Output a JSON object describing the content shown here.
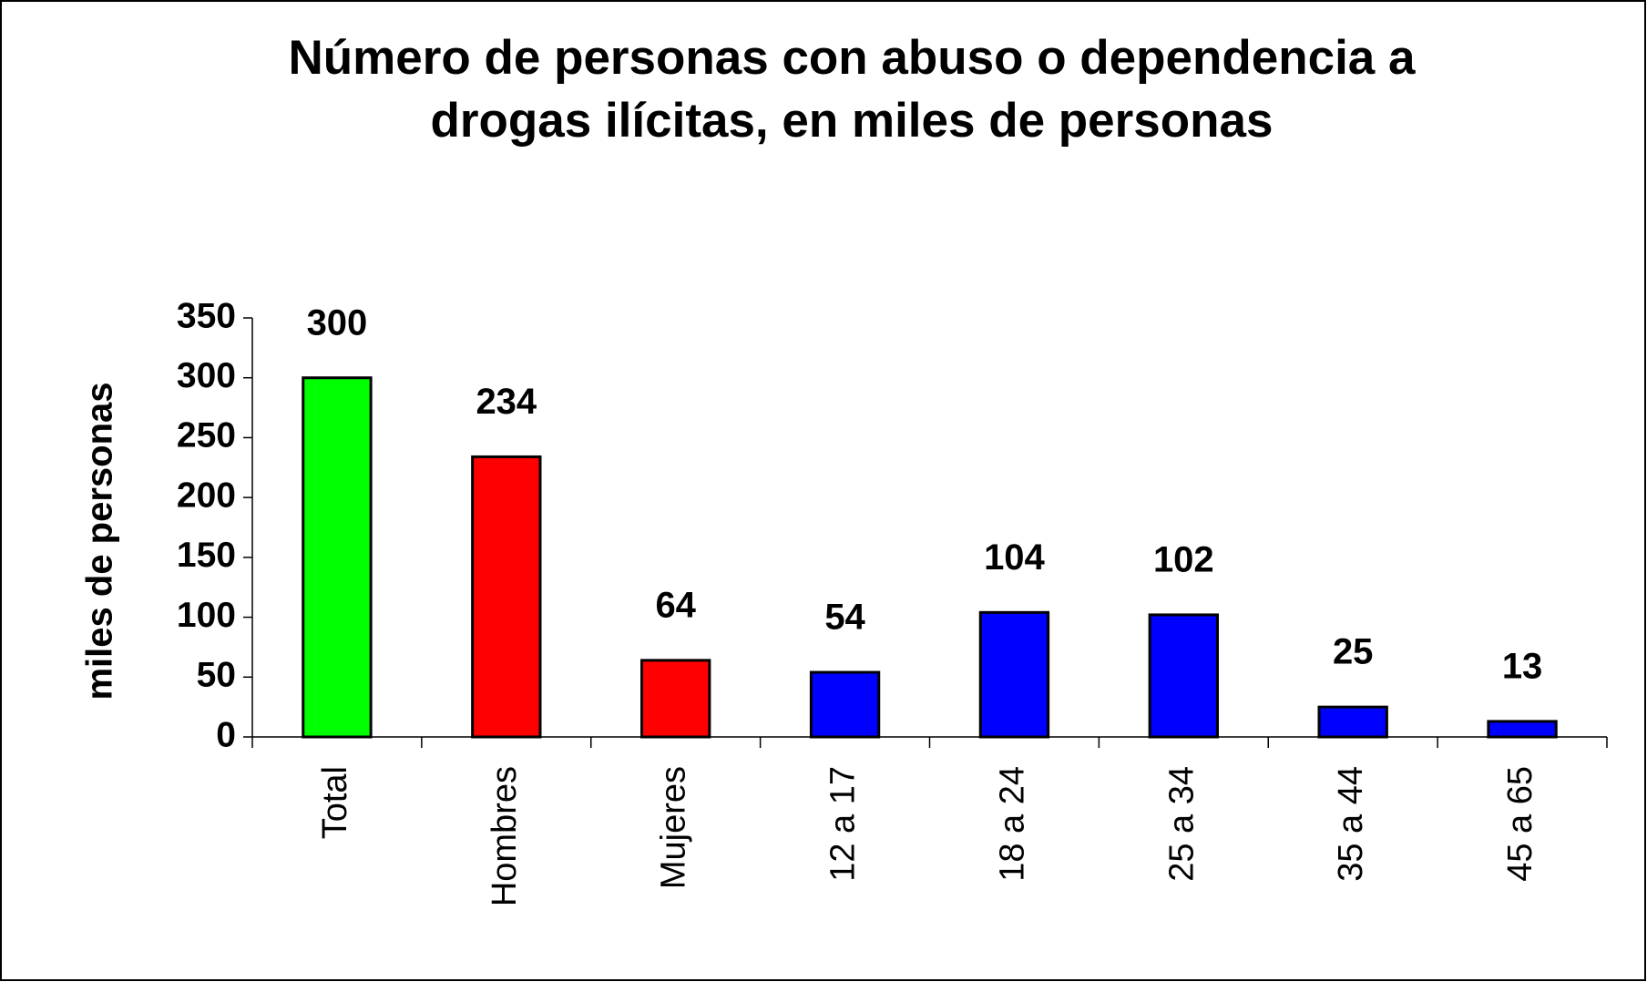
{
  "chart_data": {
    "type": "bar",
    "title": [
      "Número de personas con abuso o dependencia a",
      "drogas ilícitas, en miles de personas"
    ],
    "y_label": "miles de personas",
    "categories": [
      "Total",
      "Hombres",
      "Mujeres",
      "12 a 17",
      "18 a 24",
      "25 a 34",
      "35 a 44",
      "45 a 65"
    ],
    "values": [
      300,
      234,
      64,
      54,
      104,
      102,
      25,
      13
    ],
    "colors": [
      "#00ff00",
      "#ff0000",
      "#ff0000",
      "#0000ff",
      "#0000ff",
      "#0000ff",
      "#0000ff",
      "#0000ff"
    ],
    "ylim": [
      0,
      350
    ],
    "yticks": [
      0,
      50,
      100,
      150,
      200,
      250,
      300,
      350
    ],
    "grid": false
  }
}
